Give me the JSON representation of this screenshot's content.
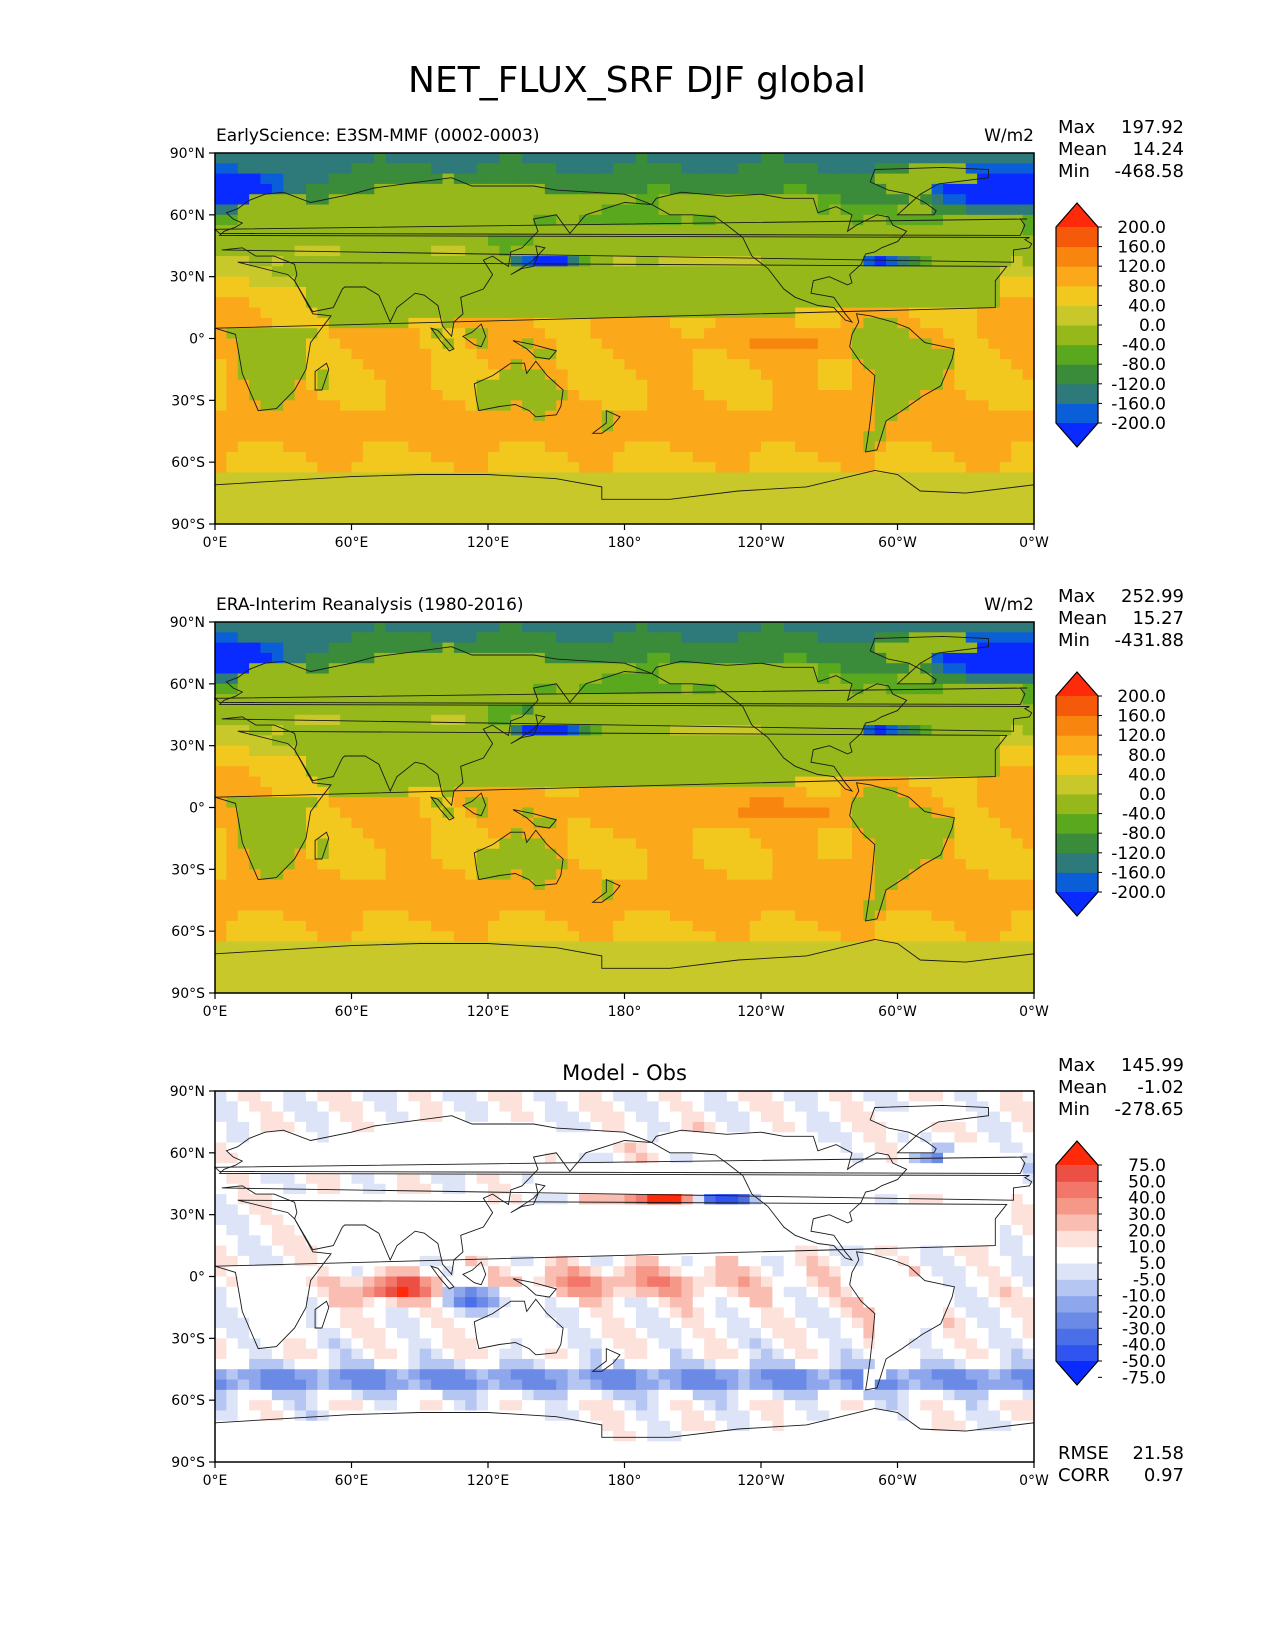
{
  "figure_title": "NET_FLUX_SRF DJF global",
  "axis_ticks": {
    "lat": [
      "90°N",
      "60°N",
      "30°N",
      "0°",
      "30°S",
      "60°S",
      "90°S"
    ],
    "lon": [
      "0°E",
      "60°E",
      "120°E",
      "180°",
      "120°W",
      "60°W",
      "0°W"
    ]
  },
  "stat_labels": {
    "max": "Max",
    "mean": "Mean",
    "min": "Min",
    "rmse": "RMSE",
    "corr": "CORR"
  },
  "colors": {
    "main": [
      "#0a2bff",
      "#0a5fd8",
      "#2e7a7a",
      "#3a8c3a",
      "#5aa81e",
      "#96b81a",
      "#c8c82a",
      "#f2c81e",
      "#fba81a",
      "#f8860e",
      "#f45a0a",
      "#ff2a0a"
    ],
    "diff": [
      "#0a2bff",
      "#2f54f0",
      "#4a6fe8",
      "#6a8ae6",
      "#8ea6ec",
      "#b6c6f2",
      "#dde4f8",
      "#ffffff",
      "#fde2dc",
      "#f9bdb2",
      "#f59888",
      "#f2766a",
      "#ec5045",
      "#ff2a0a"
    ]
  },
  "chart_data": [
    {
      "type": "heatmap",
      "panel": "model",
      "title": "",
      "left_title": "EarlyScience: E3SM-MMF (0002-0003)",
      "units": "W/m2",
      "stats": {
        "max": "197.92",
        "mean": "14.24",
        "min": "-468.58"
      },
      "colorbar_levels": [
        "200.0",
        "160.0",
        "120.0",
        "80.0",
        "40.0",
        "0.0",
        "-40.0",
        "-80.0",
        "-120.0",
        "-160.0",
        "-200.0"
      ],
      "xlim": [
        0,
        360
      ],
      "ylim": [
        -90,
        90
      ]
    },
    {
      "type": "heatmap",
      "panel": "obs",
      "title": "",
      "left_title": "ERA-Interim Reanalysis (1980-2016)",
      "units": "W/m2",
      "stats": {
        "max": "252.99",
        "mean": "15.27",
        "min": "-431.88"
      },
      "colorbar_levels": [
        "200.0",
        "160.0",
        "120.0",
        "80.0",
        "40.0",
        "0.0",
        "-40.0",
        "-80.0",
        "-120.0",
        "-160.0",
        "-200.0"
      ],
      "xlim": [
        0,
        360
      ],
      "ylim": [
        -90,
        90
      ]
    },
    {
      "type": "heatmap",
      "panel": "diff",
      "title": "Model - Obs",
      "left_title": "",
      "units": "",
      "stats": {
        "max": "145.99",
        "mean": "-1.02",
        "min": "-278.65"
      },
      "rmse": "21.58",
      "corr": "0.97",
      "colorbar_levels": [
        "75.0",
        "50.0",
        "40.0",
        "30.0",
        "20.0",
        "10.0",
        "5.0",
        "-5.0",
        "-10.0",
        "-20.0",
        "-30.0",
        "-40.0",
        "-50.0",
        "-75.0"
      ],
      "xlim": [
        0,
        360
      ],
      "ylim": [
        -90,
        90
      ]
    }
  ]
}
